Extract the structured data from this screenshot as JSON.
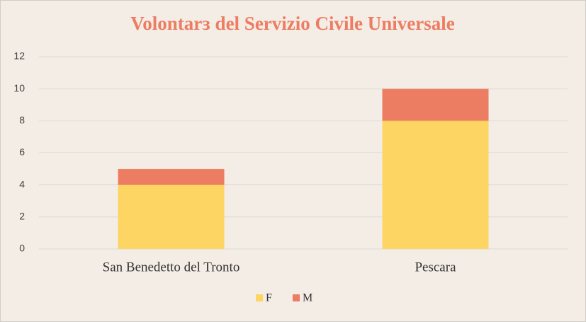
{
  "chart_data": {
    "type": "stacked-bar",
    "title": "Volontarɜ del Servizio Civile Universale",
    "categories": [
      "San Benedetto del Tronto",
      "Pescara"
    ],
    "series": [
      {
        "name": "F",
        "color": "#fdd562",
        "values": [
          4,
          8
        ]
      },
      {
        "name": "M",
        "color": "#ed7d62",
        "values": [
          1,
          2
        ]
      }
    ],
    "ylim": [
      0,
      12
    ],
    "yticks": [
      0,
      2,
      4,
      6,
      8,
      10,
      12
    ],
    "grid": true,
    "legend": "bottom"
  }
}
